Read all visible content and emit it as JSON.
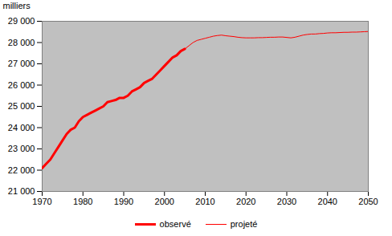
{
  "chart_data": {
    "type": "line",
    "ylabel": "milliers",
    "x": [
      1970,
      1971,
      1972,
      1973,
      1974,
      1975,
      1976,
      1977,
      1978,
      1979,
      1980,
      1981,
      1982,
      1983,
      1984,
      1985,
      1986,
      1987,
      1988,
      1989,
      1990,
      1991,
      1992,
      1993,
      1994,
      1995,
      1996,
      1997,
      1998,
      1999,
      2000,
      2001,
      2002,
      2003,
      2004,
      2005,
      2006,
      2007,
      2008,
      2009,
      2010,
      2011,
      2012,
      2013,
      2014,
      2015,
      2016,
      2017,
      2018,
      2019,
      2020,
      2021,
      2022,
      2023,
      2024,
      2025,
      2026,
      2027,
      2028,
      2029,
      2030,
      2031,
      2032,
      2033,
      2034,
      2035,
      2036,
      2037,
      2038,
      2039,
      2040,
      2041,
      2042,
      2043,
      2044,
      2045,
      2046,
      2047,
      2048,
      2049,
      2050
    ],
    "series": [
      {
        "name": "observé",
        "color": "#ff0000",
        "values": [
          22100,
          22300,
          22500,
          22800,
          23100,
          23400,
          23700,
          23900,
          24000,
          24300,
          24500,
          24600,
          24700,
          24800,
          24900,
          25000,
          25200,
          25250,
          25300,
          25400,
          25400,
          25500,
          25700,
          25800,
          25900,
          26100,
          26200,
          26300,
          26500,
          26700,
          26900,
          27100,
          27300,
          27400,
          27600,
          27700,
          null,
          null,
          null,
          null,
          null,
          null,
          null,
          null,
          null,
          null,
          null,
          null,
          null,
          null,
          null,
          null,
          null,
          null,
          null,
          null,
          null,
          null,
          null,
          null,
          null,
          null,
          null,
          null,
          null,
          null,
          null,
          null,
          null,
          null,
          null,
          null,
          null,
          null,
          null,
          null,
          null,
          null,
          null,
          null,
          null
        ]
      },
      {
        "name": "projeté",
        "color": "#ff0000",
        "values": [
          null,
          null,
          null,
          null,
          null,
          null,
          null,
          null,
          null,
          null,
          null,
          null,
          null,
          null,
          null,
          null,
          null,
          null,
          null,
          null,
          null,
          null,
          null,
          null,
          null,
          null,
          null,
          null,
          null,
          null,
          null,
          null,
          null,
          null,
          null,
          27700,
          27850,
          28000,
          28100,
          28150,
          28200,
          28250,
          28300,
          28330,
          28350,
          28320,
          28300,
          28280,
          28250,
          28230,
          28220,
          28220,
          28220,
          28230,
          28230,
          28240,
          28250,
          28250,
          28260,
          28260,
          28240,
          28220,
          28250,
          28300,
          28350,
          28380,
          28400,
          28400,
          28420,
          28430,
          28450,
          28460,
          28460,
          28470,
          28480,
          28480,
          28490,
          28490,
          28500,
          28510,
          28520
        ]
      }
    ],
    "xlim": [
      1970,
      2050
    ],
    "xticks": [
      1970,
      1980,
      1990,
      2000,
      2010,
      2020,
      2030,
      2040,
      2050
    ],
    "ylim": [
      21000,
      29000
    ],
    "yticks": [
      {
        "value": 21000,
        "label": "21 000"
      },
      {
        "value": 22000,
        "label": "22 000"
      },
      {
        "value": 23000,
        "label": "23 000"
      },
      {
        "value": 24000,
        "label": "24 000"
      },
      {
        "value": 25000,
        "label": "25 000"
      },
      {
        "value": 26000,
        "label": "26 000"
      },
      {
        "value": 27000,
        "label": "27 000"
      },
      {
        "value": 28000,
        "label": "28 000"
      },
      {
        "value": 29000,
        "label": "29 000"
      }
    ],
    "grid": false,
    "legend": "bottom"
  }
}
